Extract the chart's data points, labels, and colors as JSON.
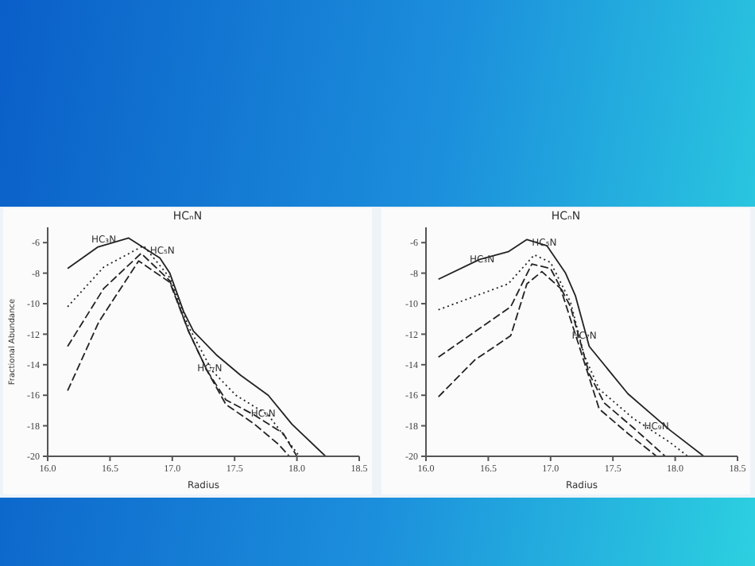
{
  "chart_data": [
    {
      "type": "line",
      "title": "HCₙN",
      "xlabel": "Radius",
      "ylabel": "Fractional Abundance",
      "xlim": [
        16,
        18.5
      ],
      "ylim": [
        -20,
        -5
      ],
      "xticks": [
        {
          "value": 16,
          "label": "16.0"
        },
        {
          "value": 16.5,
          "label": "16.5"
        },
        {
          "value": 17,
          "label": "17.0"
        },
        {
          "value": 17.5,
          "label": "17.5"
        },
        {
          "value": 18,
          "label": "18.0"
        },
        {
          "value": 18.5,
          "label": "18.5"
        }
      ],
      "yticks": [
        -20,
        -18,
        -16,
        -14,
        -12,
        -10,
        -8,
        -6
      ],
      "grid": false,
      "legend": false,
      "marker": "none",
      "series": [
        {
          "color": "#222222",
          "line_style": "solid",
          "x": [
            16.16,
            16.4,
            16.65,
            16.9,
            16.98,
            17.09,
            17.17,
            17.36,
            17.55,
            17.77,
            17.96,
            18.23
          ],
          "values": [
            -7.7,
            -6.3,
            -5.7,
            -7.0,
            -8.0,
            -10.5,
            -11.8,
            -13.4,
            -14.7,
            -16.0,
            -17.9,
            -20
          ]
        },
        {
          "color": "#222222",
          "line_style": "dotted",
          "x": [
            16.16,
            16.45,
            16.77,
            16.98,
            17.13,
            17.32,
            17.51,
            17.77,
            17.92,
            18.02
          ],
          "values": [
            -10.2,
            -7.6,
            -6.2,
            -8.3,
            -11.5,
            -14.4,
            -16.0,
            -17.3,
            -18.9,
            -20
          ]
        },
        {
          "color": "#222222",
          "line_style": "dashed",
          "x": [
            16.16,
            16.45,
            16.75,
            16.98,
            17.13,
            17.28,
            17.43,
            17.66,
            17.89,
            18.0
          ],
          "values": [
            -12.8,
            -9.0,
            -6.7,
            -8.5,
            -11.8,
            -14.4,
            -16.3,
            -17.3,
            -18.5,
            -20
          ]
        },
        {
          "color": "#222222",
          "line_style": "dashed",
          "x": [
            16.16,
            16.41,
            16.73,
            16.98,
            17.13,
            17.28,
            17.43,
            17.66,
            17.85,
            17.94
          ],
          "values": [
            -15.7,
            -11.2,
            -7.2,
            -8.6,
            -11.8,
            -14.4,
            -16.6,
            -17.9,
            -19.2,
            -20
          ]
        }
      ],
      "annotations": [
        {
          "text": "HC₃N",
          "x": 16.45,
          "y": -5.8
        },
        {
          "text": "HC₅N",
          "x": 16.92,
          "y": -6.5
        },
        {
          "text": "HC₇N",
          "x": 17.3,
          "y": -14.2
        },
        {
          "text": "HC₉N",
          "x": 17.73,
          "y": -17.2
        }
      ]
    },
    {
      "type": "line",
      "title": "HCₙN",
      "xlabel": "Radius",
      "xlim": [
        16,
        18.5
      ],
      "ylim": [
        -20,
        -5
      ],
      "xticks": [
        {
          "value": 16,
          "label": "16.0"
        },
        {
          "value": 16.5,
          "label": "16.5"
        },
        {
          "value": 17,
          "label": "17.0"
        },
        {
          "value": 17.5,
          "label": "17.5"
        },
        {
          "value": 18,
          "label": "18.0"
        },
        {
          "value": 18.5,
          "label": "18.5"
        }
      ],
      "yticks": [
        -20,
        -18,
        -16,
        -14,
        -12,
        -10,
        -8,
        -6
      ],
      "grid": false,
      "legend": false,
      "marker": "none",
      "series": [
        {
          "color": "#222222",
          "line_style": "solid",
          "x": [
            16.1,
            16.43,
            16.66,
            16.81,
            16.97,
            17.12,
            17.2,
            17.31,
            17.62,
            17.96,
            18.23
          ],
          "values": [
            -8.4,
            -7.1,
            -6.6,
            -5.8,
            -6.2,
            -8.0,
            -9.5,
            -12.8,
            -15.9,
            -18.3,
            -20
          ]
        },
        {
          "color": "#222222",
          "line_style": "dotted",
          "x": [
            16.1,
            16.66,
            16.87,
            17.0,
            17.16,
            17.27,
            17.39,
            17.66,
            17.96,
            18.1
          ],
          "values": [
            -10.4,
            -8.7,
            -6.8,
            -7.3,
            -9.9,
            -13.4,
            -15.6,
            -17.5,
            -19.1,
            -20
          ]
        },
        {
          "color": "#222222",
          "line_style": "dashed",
          "x": [
            16.1,
            16.68,
            16.85,
            17.0,
            17.16,
            17.31,
            17.43,
            17.66,
            17.92
          ],
          "values": [
            -13.5,
            -10.2,
            -7.4,
            -7.7,
            -10.2,
            -14.6,
            -16.5,
            -18.1,
            -20
          ]
        },
        {
          "color": "#222222",
          "line_style": "dashed",
          "x": [
            16.1,
            16.39,
            16.68,
            16.81,
            16.93,
            17.08,
            17.23,
            17.39,
            17.62,
            17.85
          ],
          "values": [
            -16.1,
            -13.7,
            -12.1,
            -8.7,
            -7.9,
            -9.0,
            -12.8,
            -16.9,
            -18.5,
            -20
          ]
        }
      ],
      "annotations": [
        {
          "text": "HC₃N",
          "x": 16.45,
          "y": -7.1
        },
        {
          "text": "HC₅N",
          "x": 16.95,
          "y": -6.0
        },
        {
          "text": "HC₇N",
          "x": 17.27,
          "y": -12.1
        },
        {
          "text": "HC₉N",
          "x": 17.85,
          "y": -18.0
        }
      ]
    }
  ]
}
